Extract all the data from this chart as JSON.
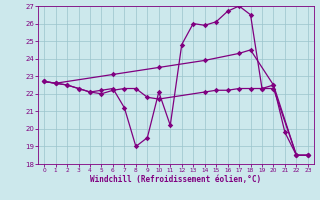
{
  "xlabel": "Windchill (Refroidissement éolien,°C)",
  "bg_color": "#cce8ec",
  "grid_color": "#9ac4cc",
  "line_color": "#800080",
  "xlim": [
    -0.5,
    23.5
  ],
  "ylim": [
    18,
    27
  ],
  "yticks": [
    18,
    19,
    20,
    21,
    22,
    23,
    24,
    25,
    26,
    27
  ],
  "xticks": [
    0,
    1,
    2,
    3,
    4,
    5,
    6,
    7,
    8,
    9,
    10,
    11,
    12,
    13,
    14,
    15,
    16,
    17,
    18,
    19,
    20,
    21,
    22,
    23
  ],
  "line1_x": [
    0,
    1,
    2,
    3,
    4,
    5,
    6,
    7,
    8,
    9,
    10,
    11,
    12,
    13,
    14,
    15,
    16,
    17,
    18,
    19,
    20,
    21,
    22,
    23
  ],
  "line1_y": [
    22.7,
    22.6,
    22.5,
    22.3,
    22.1,
    22.2,
    22.3,
    21.2,
    19.0,
    19.5,
    22.1,
    20.2,
    24.8,
    26.0,
    25.9,
    26.1,
    26.7,
    27.0,
    26.5,
    22.3,
    22.5,
    19.8,
    18.5,
    18.5
  ],
  "line2_x": [
    0,
    1,
    6,
    10,
    14,
    17,
    18,
    20,
    22,
    23
  ],
  "line2_y": [
    22.7,
    22.6,
    23.1,
    23.5,
    23.9,
    24.3,
    24.5,
    22.5,
    18.5,
    18.5
  ],
  "line3_x": [
    0,
    1,
    2,
    3,
    4,
    5,
    6,
    7,
    8,
    9,
    10,
    14,
    15,
    16,
    17,
    18,
    19,
    20,
    22,
    23
  ],
  "line3_y": [
    22.7,
    22.6,
    22.5,
    22.3,
    22.1,
    22.0,
    22.2,
    22.3,
    22.3,
    21.8,
    21.7,
    22.1,
    22.2,
    22.2,
    22.3,
    22.3,
    22.3,
    22.3,
    18.5,
    18.5
  ]
}
